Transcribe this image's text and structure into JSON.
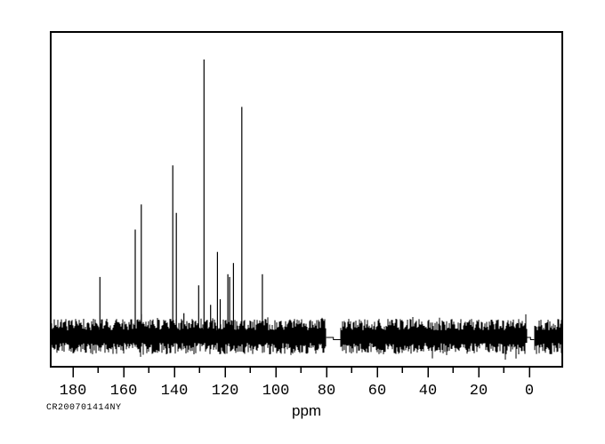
{
  "footer": {
    "experiment_id": "CR200701414NY"
  },
  "chart_data": {
    "type": "line",
    "subtype": "nmr-spectrum-13C",
    "title": "",
    "xlabel": "ppm",
    "ylabel": "",
    "xlim": [
      188.6,
      -13.0
    ],
    "grid": false,
    "legend": "none",
    "line_color": "#000000",
    "background_color": "#ffffff",
    "x_ticks_major": [
      180,
      160,
      140,
      120,
      100,
      80,
      60,
      40,
      20,
      0
    ],
    "x_ticks_minor": [
      170,
      150,
      130,
      110,
      90,
      70,
      50,
      30,
      10
    ],
    "peaks": [
      {
        "ppm": 169.2,
        "intensity": 0.22
      },
      {
        "ppm": 155.3,
        "intensity": 0.39
      },
      {
        "ppm": 152.9,
        "intensity": 0.48
      },
      {
        "ppm": 140.5,
        "intensity": 0.62
      },
      {
        "ppm": 139.1,
        "intensity": 0.45
      },
      {
        "ppm": 136.1,
        "intensity": 0.09
      },
      {
        "ppm": 130.3,
        "intensity": 0.19
      },
      {
        "ppm": 128.2,
        "intensity": 1.0
      },
      {
        "ppm": 125.6,
        "intensity": 0.12
      },
      {
        "ppm": 122.9,
        "intensity": 0.31
      },
      {
        "ppm": 121.8,
        "intensity": 0.14
      },
      {
        "ppm": 118.8,
        "intensity": 0.23
      },
      {
        "ppm": 118.1,
        "intensity": 0.22
      },
      {
        "ppm": 116.6,
        "intensity": 0.27
      },
      {
        "ppm": 113.3,
        "intensity": 0.83
      },
      {
        "ppm": 105.2,
        "intensity": 0.23
      }
    ],
    "signal_gaps_ppm": [
      [
        80.0,
        74.4
      ],
      [
        0.9,
        -1.9
      ]
    ],
    "annotation": "CR200701414NY"
  }
}
